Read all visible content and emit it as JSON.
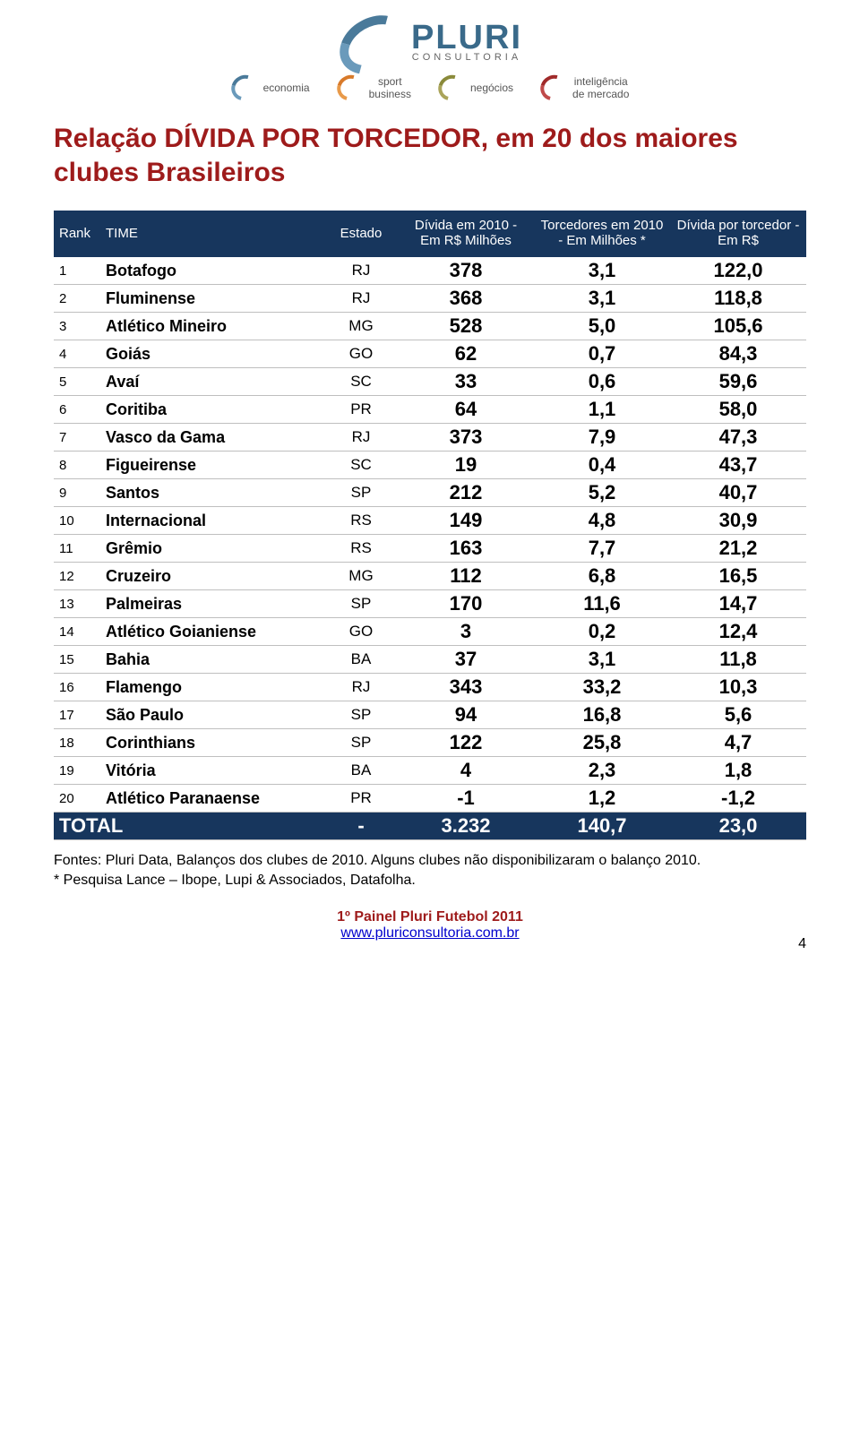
{
  "brand": {
    "name": "PLURI",
    "tagline": "CONSULTORIA",
    "sub": [
      {
        "label": "economia"
      },
      {
        "label_line1": "sport",
        "label_line2": "business"
      },
      {
        "label": "negócios"
      },
      {
        "label_line1": "inteligência",
        "label_line2": "de mercado"
      }
    ]
  },
  "title": "Relação DÍVIDA POR TORCEDOR, em 20 dos maiores clubes Brasileiros",
  "table": {
    "type": "table",
    "header_bg": "#17365d",
    "header_fg": "#ffffff",
    "row_border_color": "#bfbfbf",
    "body_font_weight": "bold",
    "num_fontsize": 22,
    "columns": [
      {
        "key": "rank",
        "label": "Rank",
        "align": "left"
      },
      {
        "key": "time",
        "label": "TIME",
        "align": "left"
      },
      {
        "key": "estado",
        "label": "Estado",
        "align": "center"
      },
      {
        "key": "divida",
        "label": "Dívida em 2010 - Em R$ Milhões",
        "align": "center"
      },
      {
        "key": "torc",
        "label": "Torcedores em 2010 - Em Milhões *",
        "align": "center"
      },
      {
        "key": "dpt",
        "label": "Dívida por torcedor - Em R$",
        "align": "center"
      }
    ],
    "rows": [
      {
        "rank": "1",
        "time": "Botafogo",
        "estado": "RJ",
        "divida": "378",
        "torc": "3,1",
        "dpt": "122,0"
      },
      {
        "rank": "2",
        "time": "Fluminense",
        "estado": "RJ",
        "divida": "368",
        "torc": "3,1",
        "dpt": "118,8"
      },
      {
        "rank": "3",
        "time": "Atlético Mineiro",
        "estado": "MG",
        "divida": "528",
        "torc": "5,0",
        "dpt": "105,6"
      },
      {
        "rank": "4",
        "time": "Goiás",
        "estado": "GO",
        "divida": "62",
        "torc": "0,7",
        "dpt": "84,3"
      },
      {
        "rank": "5",
        "time": "Avaí",
        "estado": "SC",
        "divida": "33",
        "torc": "0,6",
        "dpt": "59,6"
      },
      {
        "rank": "6",
        "time": "Coritiba",
        "estado": "PR",
        "divida": "64",
        "torc": "1,1",
        "dpt": "58,0"
      },
      {
        "rank": "7",
        "time": "Vasco da Gama",
        "estado": "RJ",
        "divida": "373",
        "torc": "7,9",
        "dpt": "47,3"
      },
      {
        "rank": "8",
        "time": "Figueirense",
        "estado": "SC",
        "divida": "19",
        "torc": "0,4",
        "dpt": "43,7"
      },
      {
        "rank": "9",
        "time": "Santos",
        "estado": "SP",
        "divida": "212",
        "torc": "5,2",
        "dpt": "40,7"
      },
      {
        "rank": "10",
        "time": "Internacional",
        "estado": "RS",
        "divida": "149",
        "torc": "4,8",
        "dpt": "30,9"
      },
      {
        "rank": "11",
        "time": "Grêmio",
        "estado": "RS",
        "divida": "163",
        "torc": "7,7",
        "dpt": "21,2"
      },
      {
        "rank": "12",
        "time": "Cruzeiro",
        "estado": "MG",
        "divida": "112",
        "torc": "6,8",
        "dpt": "16,5"
      },
      {
        "rank": "13",
        "time": "Palmeiras",
        "estado": "SP",
        "divida": "170",
        "torc": "11,6",
        "dpt": "14,7"
      },
      {
        "rank": "14",
        "time": "Atlético Goianiense",
        "estado": "GO",
        "divida": "3",
        "torc": "0,2",
        "dpt": "12,4"
      },
      {
        "rank": "15",
        "time": "Bahia",
        "estado": "BA",
        "divida": "37",
        "torc": "3,1",
        "dpt": "11,8"
      },
      {
        "rank": "16",
        "time": "Flamengo",
        "estado": "RJ",
        "divida": "343",
        "torc": "33,2",
        "dpt": "10,3"
      },
      {
        "rank": "17",
        "time": "São Paulo",
        "estado": "SP",
        "divida": "94",
        "torc": "16,8",
        "dpt": "5,6"
      },
      {
        "rank": "18",
        "time": "Corinthians",
        "estado": "SP",
        "divida": "122",
        "torc": "25,8",
        "dpt": "4,7"
      },
      {
        "rank": "19",
        "time": "Vitória",
        "estado": "BA",
        "divida": "4",
        "torc": "2,3",
        "dpt": "1,8"
      },
      {
        "rank": "20",
        "time": "Atlético Paranaense",
        "estado": "PR",
        "divida": "-1",
        "torc": "1,2",
        "dpt": "-1,2"
      }
    ],
    "total": {
      "label": "TOTAL",
      "estado": "-",
      "divida": "3.232",
      "torc": "140,7",
      "dpt": "23,0"
    }
  },
  "footnote": {
    "line1": "Fontes: Pluri Data, Balanços dos clubes de 2010. Alguns clubes não disponibilizaram o balanço 2010.",
    "line2": "* Pesquisa Lance – Ibope, Lupi & Associados, Datafolha."
  },
  "footer": {
    "event": "1º Painel Pluri Futebol 2011",
    "url": "www.pluriconsultoria.com.br",
    "page_number": "4"
  },
  "colors": {
    "title_red": "#9e1b1b",
    "header_blue": "#17365d",
    "link_blue": "#0000cc"
  }
}
